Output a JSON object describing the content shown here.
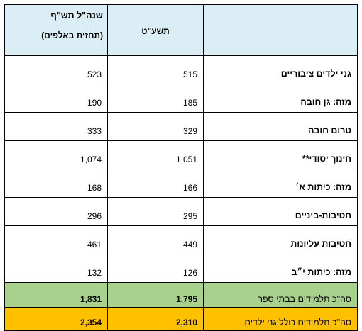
{
  "header": {
    "col_prev_line1": "שנה\"ל תש\"ף",
    "col_prev_line2": "(תחזית באלפים)",
    "col_mid": "תשע\"ט",
    "col_label": ""
  },
  "rows": [
    {
      "label": "גני ילדים ציבוריים",
      "mid": "515",
      "prev": "523"
    },
    {
      "label": "מזה: גן חובה",
      "mid": "185",
      "prev": "190"
    },
    {
      "label": "טרום חובה",
      "mid": "329",
      "prev": "333"
    },
    {
      "label": "חינוך יסודי**",
      "mid": "1,051",
      "prev": "1,074"
    },
    {
      "label": "מזה: כיתות א׳",
      "mid": "166",
      "prev": "168"
    },
    {
      "label": "חטיבות-ביניים",
      "mid": "295",
      "prev": "296"
    },
    {
      "label": "חטיבות עליונות",
      "mid": "449",
      "prev": "461"
    },
    {
      "label": "מזה: כיתות י״ב",
      "mid": "126",
      "prev": "132"
    }
  ],
  "totals": {
    "school": {
      "label": "סה\"כ תלמידים בבתי ספר",
      "mid": "1,795",
      "prev": "1,831",
      "color": "#a9d18e"
    },
    "all": {
      "label": "סה\"כ תלמידים כולל גני ילדים",
      "mid": "2,310",
      "prev": "2,354",
      "color": "#ffc000"
    }
  },
  "colors": {
    "header_bg": "#dbeef5",
    "border": "#000000"
  }
}
